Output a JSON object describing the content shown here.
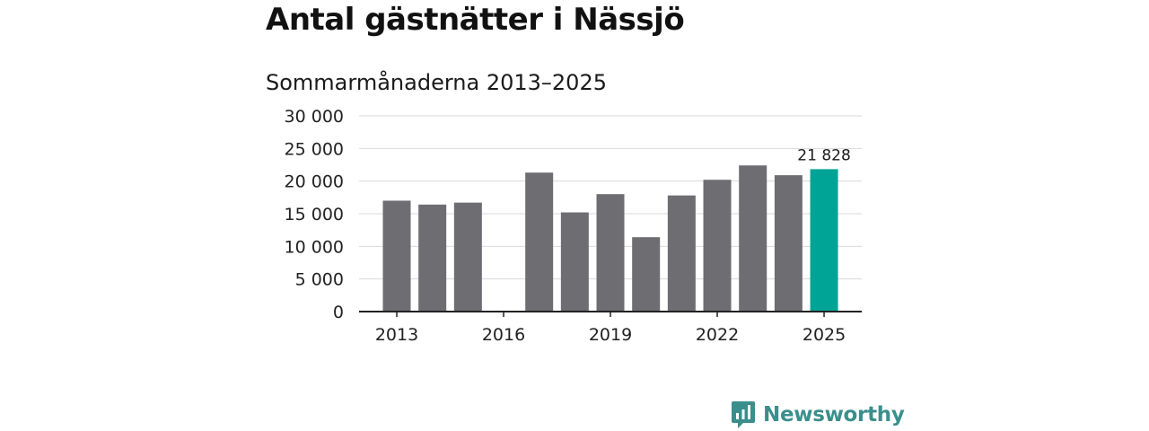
{
  "title": "Antal gästnätter i Nässjö",
  "subtitle": "Sommarmånaderna 2013–2025",
  "brand": {
    "name": "Newsworthy",
    "icon": "newsworthy-logo-icon",
    "color": "#3a8f8c"
  },
  "colors": {
    "bar": "#6e6d72",
    "highlight": "#00a497",
    "grid": "#d9d9d9",
    "axis": "#222222"
  },
  "chart_data": {
    "type": "bar",
    "title": "Antal gästnätter i Nässjö",
    "subtitle": "Sommarmånaderna 2013–2025",
    "xlabel": "",
    "ylabel": "",
    "categories": [
      2013,
      2014,
      2015,
      2016,
      2017,
      2018,
      2019,
      2020,
      2021,
      2022,
      2023,
      2024,
      2025
    ],
    "values": [
      17000,
      16400,
      16700,
      null,
      21300,
      15200,
      18000,
      11400,
      17800,
      20200,
      22400,
      20900,
      21828
    ],
    "highlight_index": 12,
    "data_labels": [
      {
        "index": 12,
        "text": "21 828"
      }
    ],
    "ylim": [
      0,
      30000
    ],
    "y_ticks": [
      0,
      5000,
      10000,
      15000,
      20000,
      25000,
      30000
    ],
    "y_tick_labels": [
      "0",
      "5 000",
      "10 000",
      "15 000",
      "20 000",
      "25 000",
      "30 000"
    ],
    "x_ticks": [
      2013,
      2016,
      2019,
      2022,
      2025
    ],
    "x_tick_labels": [
      "2013",
      "2016",
      "2019",
      "2022",
      "2025"
    ],
    "grid": true,
    "legend": "none"
  }
}
